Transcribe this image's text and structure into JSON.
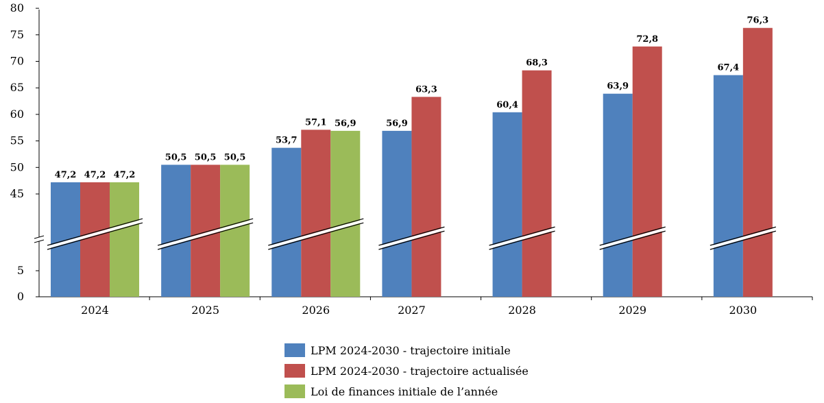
{
  "chart_data": {
    "type": "bar",
    "categories": [
      "2024",
      "2025",
      "2026",
      "2027",
      "2028",
      "2029",
      "2030"
    ],
    "series": [
      {
        "name": "LPM 2024-2030 - trajectoire initiale",
        "color": "#4f81bd",
        "values": [
          47.2,
          50.5,
          53.7,
          56.9,
          60.4,
          63.9,
          67.4
        ],
        "labels": [
          "47,2",
          "50,5",
          "53,7",
          "56,9",
          "60,4",
          "63,9",
          "67,4"
        ]
      },
      {
        "name": "LPM 2024-2030 - trajectoire actualisée",
        "color": "#c0504d",
        "values": [
          47.2,
          50.5,
          57.1,
          63.3,
          68.3,
          72.8,
          76.3
        ],
        "labels": [
          "47,2",
          "50,5",
          "57,1",
          "63,3",
          "68,3",
          "72,8",
          "76,3"
        ]
      },
      {
        "name": "Loi de finances initiale de l’année",
        "color": "#9bbb59",
        "values": [
          47.2,
          50.5,
          56.9,
          null,
          null,
          null,
          null
        ],
        "labels": [
          "47,2",
          "50,5",
          "56,9",
          "",
          "",
          "",
          ""
        ]
      }
    ],
    "y_ticks": [
      "0",
      "5",
      "45",
      "50",
      "55",
      "60",
      "65",
      "70",
      "75",
      "80"
    ],
    "y_axis_break": [
      5,
      45
    ],
    "ylim": [
      0,
      80
    ],
    "legend_position": "bottom",
    "grid": false,
    "data_labels": true
  }
}
